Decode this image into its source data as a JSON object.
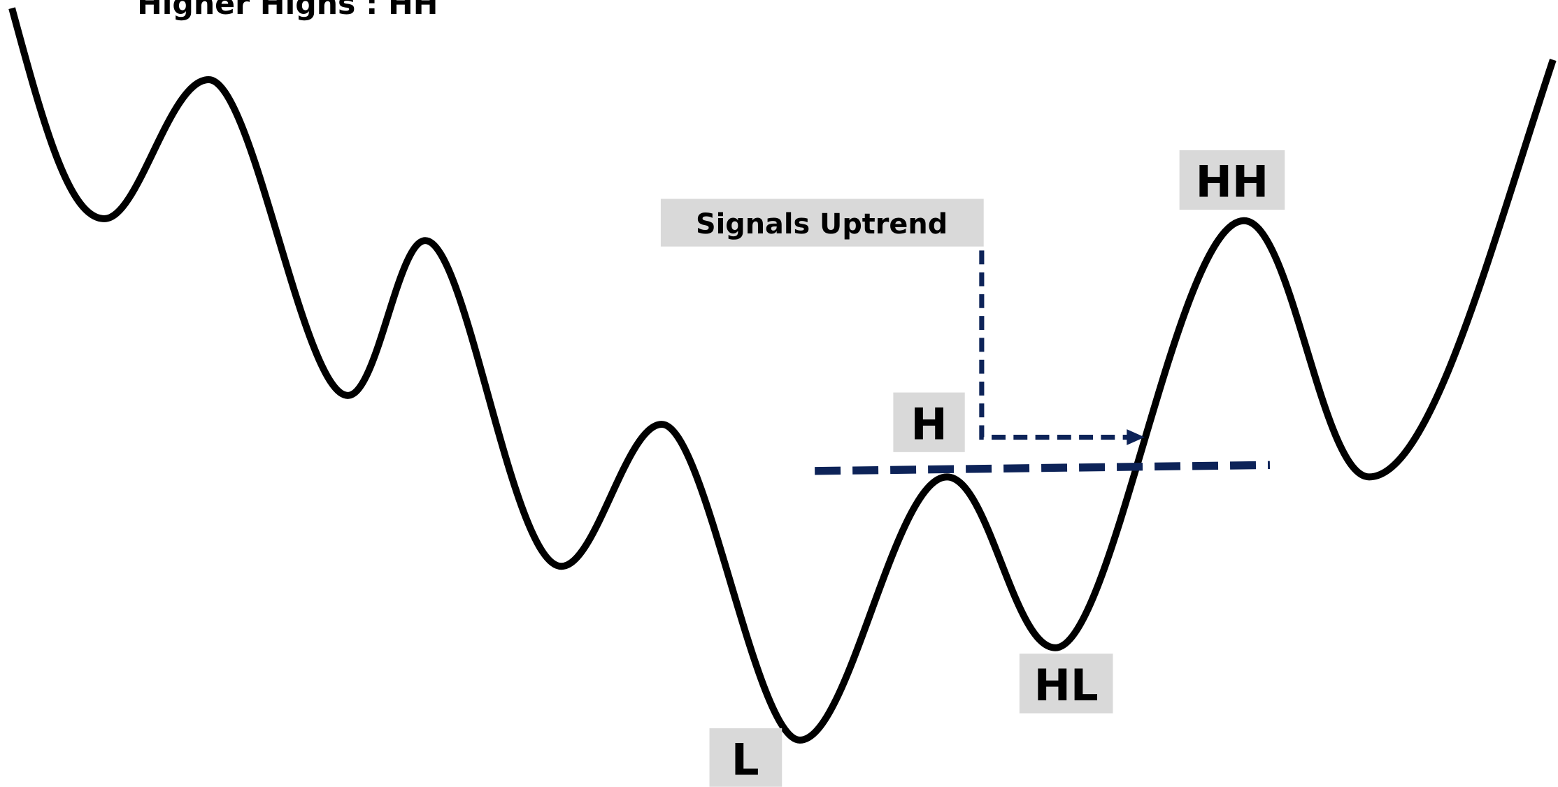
{
  "title": "Higher Highs : HH",
  "annotation": "Signals Uptrend",
  "labels": {
    "h": "H",
    "hh": "HH",
    "hl": "HL",
    "l": "L"
  }
}
